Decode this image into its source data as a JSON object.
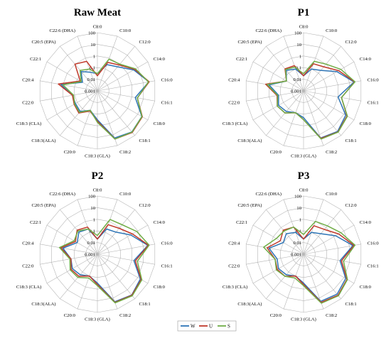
{
  "chart_data": [
    {
      "type": "radar",
      "title": "Raw Meat",
      "scale": "log",
      "rlim": [
        0.001,
        100
      ],
      "radial_ticks": [
        "100",
        "10",
        "1",
        "0.1",
        "0.01",
        "0.001"
      ],
      "categories": [
        "C8:0",
        "C10:0",
        "C12:0",
        "C14:0",
        "C16:0",
        "C16:1",
        "C18:0",
        "C18:1",
        "C18:2",
        "C18:3 (GLA)",
        "C20:0",
        "C18:3(ALA)",
        "C18:3 (CLA)",
        "C22:0",
        "C20:4",
        "C22:1",
        "C20:5 (EPA)",
        "C22:6 (DHA)"
      ],
      "series": [
        {
          "name": "W",
          "values": [
            0.03,
            0.25,
            0.5,
            4,
            30,
            2,
            25,
            40,
            20,
            0.3,
            0.06,
            0.2,
            0.15,
            0.15,
            1.5,
            0.03,
            0.15,
            0.05
          ]
        },
        {
          "name": "U",
          "values": [
            0.02,
            0.4,
            0.8,
            5,
            32,
            3,
            28,
            45,
            25,
            0.4,
            0.07,
            0.3,
            0.2,
            0.15,
            2.5,
            0.05,
            1,
            0.5
          ]
        },
        {
          "name": "S",
          "values": [
            0.03,
            0.8,
            1,
            6,
            28,
            3,
            26,
            42,
            25,
            0.5,
            0.06,
            0.25,
            0.18,
            0.12,
            1,
            0.04,
            0.2,
            0.1
          ]
        }
      ]
    },
    {
      "type": "radar",
      "title": "P1",
      "scale": "log",
      "rlim": [
        0.001,
        100
      ],
      "radial_ticks": [
        "100",
        "10",
        "1",
        "0.1",
        "0.01",
        "0.001"
      ],
      "categories": [
        "C8:0",
        "C10:0",
        "C12:0",
        "C14:0",
        "C16:0",
        "C16:1",
        "C18:0",
        "C18:1",
        "C18:2",
        "C18:3 (GLA)",
        "C20:0",
        "C18:3(ALA)",
        "C18:3 (CLA)",
        "C22:0",
        "C20:4",
        "C22:1",
        "C20:5 (EPA)",
        "C22:6 (DHA)"
      ],
      "series": [
        {
          "name": "W",
          "values": [
            0.02,
            0.1,
            0.2,
            2,
            25,
            1,
            15,
            35,
            20,
            0.2,
            0.1,
            0.2,
            0.3,
            0.15,
            1,
            0.05,
            0.2,
            0.1
          ]
        },
        {
          "name": "U",
          "values": [
            0.02,
            0.3,
            0.5,
            3,
            28,
            2,
            20,
            40,
            22,
            0.3,
            0.1,
            0.3,
            0.4,
            0.2,
            2,
            0.05,
            0.3,
            0.2
          ]
        },
        {
          "name": "S",
          "values": [
            0.03,
            0.5,
            1,
            5,
            30,
            2,
            22,
            42,
            25,
            0.3,
            0.1,
            0.3,
            0.4,
            0.18,
            1.5,
            0.05,
            0.25,
            0.15
          ]
        }
      ]
    },
    {
      "type": "radar",
      "title": "P2",
      "scale": "log",
      "rlim": [
        0.001,
        100
      ],
      "radial_ticks": [
        "100",
        "10",
        "1",
        "0.1",
        "0.01",
        "0.001"
      ],
      "categories": [
        "C8:0",
        "C10:0",
        "C12:0",
        "C14:0",
        "C16:0",
        "C16:1",
        "C18:0",
        "C18:1",
        "C18:2",
        "C18:3 (GLA)",
        "C20:0",
        "C18:3(ALA)",
        "C18:3 (CLA)",
        "C22:0",
        "C20:4",
        "C22:1",
        "C20:5 (EPA)",
        "C22:6 (DHA)"
      ],
      "series": [
        {
          "name": "W",
          "values": [
            0.02,
            0.2,
            0.3,
            2,
            25,
            1.5,
            18,
            38,
            22,
            0.3,
            0.1,
            0.2,
            0.3,
            0.2,
            1,
            0.1,
            0.3,
            0.2
          ]
        },
        {
          "name": "U",
          "values": [
            0.02,
            0.5,
            0.8,
            3,
            28,
            2,
            22,
            40,
            25,
            0.4,
            0.1,
            0.3,
            0.4,
            0.2,
            1.5,
            0.15,
            0.5,
            0.3
          ]
        },
        {
          "name": "S",
          "values": [
            0.04,
            1.5,
            2,
            8,
            32,
            3,
            25,
            45,
            28,
            0.5,
            0.15,
            0.4,
            0.5,
            0.25,
            2,
            0.2,
            0.4,
            0.2
          ]
        }
      ]
    },
    {
      "type": "radar",
      "title": "P3",
      "scale": "log",
      "rlim": [
        0.001,
        100
      ],
      "radial_ticks": [
        "100",
        "10",
        "1",
        "0.1",
        "0.01",
        "0.001"
      ],
      "categories": [
        "C8:0",
        "C10:0",
        "C12:0",
        "C14:0",
        "C16:0",
        "C16:1",
        "C18:0",
        "C18:1",
        "C18:2",
        "C18:3 (GLA)",
        "C20:0",
        "C18:3(ALA)",
        "C18:3 (CLA)",
        "C22:0",
        "C20:4",
        "C22:1",
        "C20:5 (EPA)",
        "C22:6 (DHA)"
      ],
      "series": [
        {
          "name": "W",
          "values": [
            0.02,
            0.1,
            0.2,
            1.5,
            20,
            1.5,
            15,
            30,
            20,
            0.3,
            0.1,
            0.2,
            0.3,
            0.2,
            1,
            0.1,
            0.2,
            0.1
          ]
        },
        {
          "name": "U",
          "values": [
            0.02,
            0.4,
            0.6,
            3,
            25,
            2,
            20,
            40,
            25,
            0.4,
            0.1,
            0.3,
            0.4,
            0.3,
            1.5,
            0.2,
            0.5,
            0.3
          ]
        },
        {
          "name": "S",
          "values": [
            0.05,
            1,
            1.5,
            5,
            30,
            3,
            22,
            45,
            30,
            0.5,
            0.15,
            0.3,
            0.5,
            0.3,
            3,
            0.5,
            0.4,
            0.3
          ]
        }
      ]
    }
  ],
  "legend": {
    "items": [
      {
        "name": "W",
        "color": "#2e75b6"
      },
      {
        "name": "U",
        "color": "#c0392b"
      },
      {
        "name": "S",
        "color": "#70ad47"
      }
    ]
  }
}
